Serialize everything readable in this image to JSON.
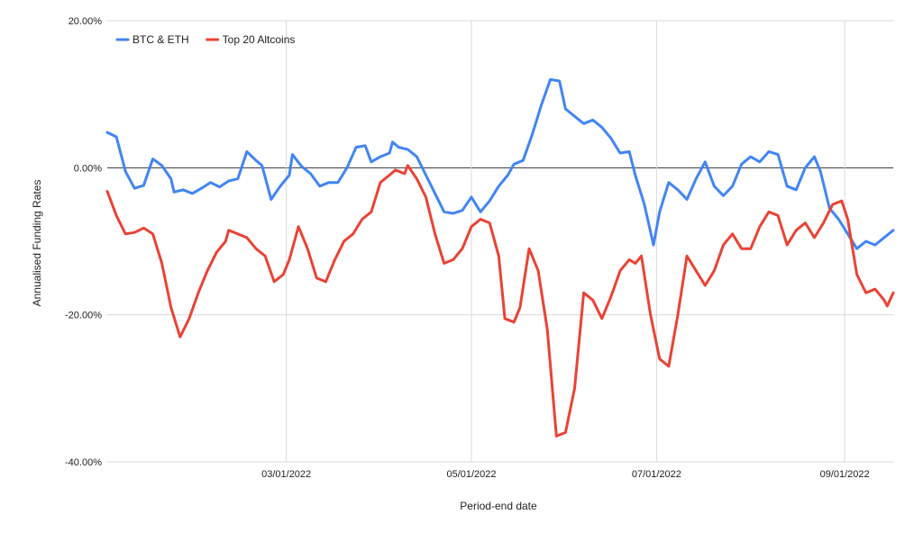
{
  "chart_data": {
    "type": "line",
    "title": "",
    "xlabel": "Period-end date",
    "ylabel": "Annualised Funding Rates",
    "x_range": [
      "2022-01-01",
      "2022-09-17"
    ],
    "ylim": [
      -40,
      20
    ],
    "y_ticks": [
      {
        "value": 20,
        "label": "20.00%"
      },
      {
        "value": 0,
        "label": "0.00%"
      },
      {
        "value": -20,
        "label": "-20.00%"
      },
      {
        "value": -40,
        "label": "-40.00%"
      }
    ],
    "x_ticks": [
      {
        "date": "2022-03-01",
        "label": "03/01/2022"
      },
      {
        "date": "2022-05-01",
        "label": "05/01/2022"
      },
      {
        "date": "2022-07-01",
        "label": "07/01/2022"
      },
      {
        "date": "2022-09-01",
        "label": "09/01/2022"
      }
    ],
    "grid": true,
    "zero_line": true,
    "legend_position": "top-left",
    "series": [
      {
        "name": "BTC & ETH",
        "color": "#4285F4",
        "points": [
          [
            "2022-01-01",
            4.8
          ],
          [
            "2022-01-04",
            4.2
          ],
          [
            "2022-01-07",
            -0.5
          ],
          [
            "2022-01-10",
            -2.8
          ],
          [
            "2022-01-13",
            -2.4
          ],
          [
            "2022-01-16",
            1.2
          ],
          [
            "2022-01-19",
            0.3
          ],
          [
            "2022-01-22",
            -1.5
          ],
          [
            "2022-01-23",
            -3.3
          ],
          [
            "2022-01-26",
            -3.0
          ],
          [
            "2022-01-29",
            -3.5
          ],
          [
            "2022-02-01",
            -2.8
          ],
          [
            "2022-02-04",
            -2.0
          ],
          [
            "2022-02-07",
            -2.6
          ],
          [
            "2022-02-10",
            -1.8
          ],
          [
            "2022-02-13",
            -1.5
          ],
          [
            "2022-02-16",
            2.2
          ],
          [
            "2022-02-19",
            1.0
          ],
          [
            "2022-02-21",
            0.3
          ],
          [
            "2022-02-24",
            -4.3
          ],
          [
            "2022-02-27",
            -2.5
          ],
          [
            "2022-03-02",
            -1.0
          ],
          [
            "2022-03-03",
            1.8
          ],
          [
            "2022-03-06",
            0.2
          ],
          [
            "2022-03-09",
            -0.8
          ],
          [
            "2022-03-12",
            -2.5
          ],
          [
            "2022-03-15",
            -2.0
          ],
          [
            "2022-03-18",
            -2.0
          ],
          [
            "2022-03-21",
            0.0
          ],
          [
            "2022-03-24",
            2.8
          ],
          [
            "2022-03-27",
            3.0
          ],
          [
            "2022-03-29",
            0.8
          ],
          [
            "2022-04-01",
            1.5
          ],
          [
            "2022-04-04",
            2.0
          ],
          [
            "2022-04-05",
            3.5
          ],
          [
            "2022-04-07",
            2.8
          ],
          [
            "2022-04-10",
            2.5
          ],
          [
            "2022-04-13",
            1.5
          ],
          [
            "2022-04-16",
            -1.0
          ],
          [
            "2022-04-19",
            -3.5
          ],
          [
            "2022-04-22",
            -6.0
          ],
          [
            "2022-04-25",
            -6.2
          ],
          [
            "2022-04-28",
            -5.8
          ],
          [
            "2022-05-01",
            -4.0
          ],
          [
            "2022-05-04",
            -6.0
          ],
          [
            "2022-05-07",
            -4.5
          ],
          [
            "2022-05-10",
            -2.5
          ],
          [
            "2022-05-13",
            -1.0
          ],
          [
            "2022-05-15",
            0.5
          ],
          [
            "2022-05-18",
            1.0
          ],
          [
            "2022-05-21",
            4.5
          ],
          [
            "2022-05-24",
            8.5
          ],
          [
            "2022-05-27",
            12.0
          ],
          [
            "2022-05-30",
            11.8
          ],
          [
            "2022-06-01",
            8.0
          ],
          [
            "2022-06-04",
            7.0
          ],
          [
            "2022-06-07",
            6.0
          ],
          [
            "2022-06-10",
            6.5
          ],
          [
            "2022-06-13",
            5.5
          ],
          [
            "2022-06-16",
            4.0
          ],
          [
            "2022-06-19",
            2.0
          ],
          [
            "2022-06-22",
            2.2
          ],
          [
            "2022-06-24",
            -1.0
          ],
          [
            "2022-06-27",
            -5.0
          ],
          [
            "2022-06-30",
            -10.5
          ],
          [
            "2022-07-02",
            -6.0
          ],
          [
            "2022-07-05",
            -2.0
          ],
          [
            "2022-07-08",
            -3.0
          ],
          [
            "2022-07-11",
            -4.3
          ],
          [
            "2022-07-14",
            -1.5
          ],
          [
            "2022-07-17",
            0.8
          ],
          [
            "2022-07-20",
            -2.5
          ],
          [
            "2022-07-23",
            -3.8
          ],
          [
            "2022-07-26",
            -2.5
          ],
          [
            "2022-07-29",
            0.5
          ],
          [
            "2022-08-01",
            1.5
          ],
          [
            "2022-08-04",
            0.8
          ],
          [
            "2022-08-07",
            2.2
          ],
          [
            "2022-08-10",
            1.8
          ],
          [
            "2022-08-13",
            -2.5
          ],
          [
            "2022-08-16",
            -3.0
          ],
          [
            "2022-08-19",
            0.0
          ],
          [
            "2022-08-22",
            1.5
          ],
          [
            "2022-08-24",
            -0.5
          ],
          [
            "2022-08-27",
            -5.5
          ],
          [
            "2022-08-30",
            -7.0
          ],
          [
            "2022-09-02",
            -9.0
          ],
          [
            "2022-09-05",
            -11.0
          ],
          [
            "2022-09-08",
            -10.0
          ],
          [
            "2022-09-11",
            -10.5
          ],
          [
            "2022-09-14",
            -9.5
          ],
          [
            "2022-09-17",
            -8.5
          ]
        ]
      },
      {
        "name": "Top 20 Altcoins",
        "color": "#EA4335",
        "points": [
          [
            "2022-01-01",
            -3.2
          ],
          [
            "2022-01-04",
            -6.5
          ],
          [
            "2022-01-07",
            -9.0
          ],
          [
            "2022-01-10",
            -8.8
          ],
          [
            "2022-01-13",
            -8.2
          ],
          [
            "2022-01-16",
            -9.0
          ],
          [
            "2022-01-19",
            -13.0
          ],
          [
            "2022-01-22",
            -19.0
          ],
          [
            "2022-01-25",
            -23.0
          ],
          [
            "2022-01-28",
            -20.5
          ],
          [
            "2022-01-31",
            -17.0
          ],
          [
            "2022-02-03",
            -14.0
          ],
          [
            "2022-02-06",
            -11.5
          ],
          [
            "2022-02-09",
            -10.0
          ],
          [
            "2022-02-10",
            -8.5
          ],
          [
            "2022-02-13",
            -9.0
          ],
          [
            "2022-02-16",
            -9.5
          ],
          [
            "2022-02-19",
            -11.0
          ],
          [
            "2022-02-22",
            -12.0
          ],
          [
            "2022-02-25",
            -15.5
          ],
          [
            "2022-02-28",
            -14.5
          ],
          [
            "2022-03-02",
            -12.5
          ],
          [
            "2022-03-05",
            -8.0
          ],
          [
            "2022-03-08",
            -11.0
          ],
          [
            "2022-03-11",
            -15.0
          ],
          [
            "2022-03-14",
            -15.5
          ],
          [
            "2022-03-17",
            -12.5
          ],
          [
            "2022-03-20",
            -10.0
          ],
          [
            "2022-03-23",
            -9.0
          ],
          [
            "2022-03-26",
            -7.0
          ],
          [
            "2022-03-29",
            -6.0
          ],
          [
            "2022-04-01",
            -2.0
          ],
          [
            "2022-04-04",
            -1.0
          ],
          [
            "2022-04-06",
            -0.3
          ],
          [
            "2022-04-09",
            -0.8
          ],
          [
            "2022-04-10",
            0.3
          ],
          [
            "2022-04-13",
            -1.5
          ],
          [
            "2022-04-16",
            -4.0
          ],
          [
            "2022-04-19",
            -9.0
          ],
          [
            "2022-04-22",
            -13.0
          ],
          [
            "2022-04-25",
            -12.5
          ],
          [
            "2022-04-28",
            -11.0
          ],
          [
            "2022-05-01",
            -8.0
          ],
          [
            "2022-05-04",
            -7.0
          ],
          [
            "2022-05-07",
            -7.5
          ],
          [
            "2022-05-10",
            -12.0
          ],
          [
            "2022-05-12",
            -20.5
          ],
          [
            "2022-05-15",
            -21.0
          ],
          [
            "2022-05-17",
            -19.0
          ],
          [
            "2022-05-20",
            -11.0
          ],
          [
            "2022-05-23",
            -14.0
          ],
          [
            "2022-05-26",
            -22.0
          ],
          [
            "2022-05-29",
            -36.5
          ],
          [
            "2022-06-01",
            -36.0
          ],
          [
            "2022-06-04",
            -30.0
          ],
          [
            "2022-06-07",
            -17.0
          ],
          [
            "2022-06-10",
            -18.0
          ],
          [
            "2022-06-13",
            -20.5
          ],
          [
            "2022-06-16",
            -17.5
          ],
          [
            "2022-06-19",
            -14.0
          ],
          [
            "2022-06-22",
            -12.5
          ],
          [
            "2022-06-24",
            -13.0
          ],
          [
            "2022-06-26",
            -12.0
          ],
          [
            "2022-06-29",
            -20.0
          ],
          [
            "2022-07-02",
            -26.0
          ],
          [
            "2022-07-05",
            -27.0
          ],
          [
            "2022-07-08",
            -20.0
          ],
          [
            "2022-07-11",
            -12.0
          ],
          [
            "2022-07-14",
            -14.0
          ],
          [
            "2022-07-17",
            -16.0
          ],
          [
            "2022-07-20",
            -14.0
          ],
          [
            "2022-07-23",
            -10.5
          ],
          [
            "2022-07-26",
            -9.0
          ],
          [
            "2022-07-29",
            -11.0
          ],
          [
            "2022-08-01",
            -11.0
          ],
          [
            "2022-08-04",
            -8.0
          ],
          [
            "2022-08-07",
            -6.0
          ],
          [
            "2022-08-10",
            -6.5
          ],
          [
            "2022-08-13",
            -10.5
          ],
          [
            "2022-08-16",
            -8.5
          ],
          [
            "2022-08-19",
            -7.5
          ],
          [
            "2022-08-22",
            -9.5
          ],
          [
            "2022-08-25",
            -7.5
          ],
          [
            "2022-08-28",
            -5.0
          ],
          [
            "2022-08-31",
            -4.5
          ],
          [
            "2022-09-02",
            -7.0
          ],
          [
            "2022-09-05",
            -14.5
          ],
          [
            "2022-09-08",
            -17.0
          ],
          [
            "2022-09-11",
            -16.5
          ],
          [
            "2022-09-14",
            -18.0
          ],
          [
            "2022-09-15",
            -18.8
          ],
          [
            "2022-09-17",
            -17.0
          ]
        ]
      }
    ]
  }
}
